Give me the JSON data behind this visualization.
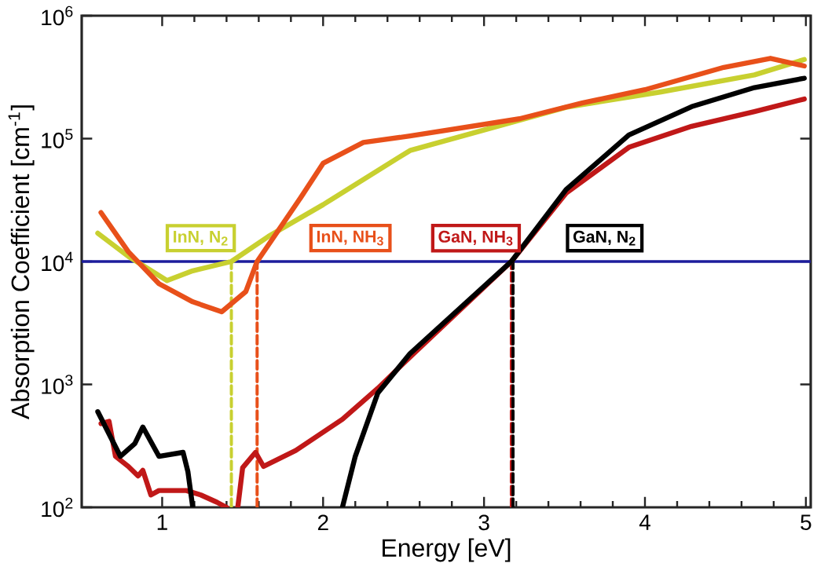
{
  "chart_data": {
    "type": "line",
    "xlabel": "Energy [eV]",
    "ylabel": "Absorption Coefficient [cm$^{-1}$]",
    "log": "y",
    "xlim": [
      0.5,
      5.03
    ],
    "ylim": [
      100,
      1000000
    ],
    "xticks": [
      1,
      2,
      3,
      4,
      5
    ],
    "yticks": [
      {
        "value": 100,
        "label": "10$^{2}$"
      },
      {
        "value": 1000,
        "label": "10$^{3}$"
      },
      {
        "value": 10000,
        "label": "10$^{4}$"
      },
      {
        "value": 100000,
        "label": "10$^{5}$"
      },
      {
        "value": 1000000,
        "label": "10$^{6}$"
      }
    ],
    "series": [
      {
        "name": "InN, N$_{2}$",
        "color": "#c8d030",
        "x": [
          0.6,
          0.79,
          1.03,
          1.19,
          1.43,
          1.66,
          2.0,
          2.54,
          3.51,
          4.1,
          4.68,
          4.99
        ],
        "values": [
          17000,
          11000,
          7000,
          8400,
          10000,
          16000,
          29000,
          80000,
          180000,
          240000,
          330000,
          440000
        ]
      },
      {
        "name": "InN, NH$_{3}$",
        "color": "#e8501a",
        "x": [
          0.62,
          0.79,
          0.98,
          1.19,
          1.37,
          1.52,
          1.59,
          1.86,
          2.0,
          2.25,
          2.54,
          3.22,
          3.61,
          4.0,
          4.49,
          4.78,
          4.99
        ],
        "values": [
          25000,
          12000,
          6600,
          4700,
          3900,
          5700,
          10000,
          33000,
          63000,
          93000,
          105000,
          145000,
          195000,
          250000,
          380000,
          450000,
          390000
        ]
      },
      {
        "name": "GaN, NH$_{3}$",
        "color": "#c01818",
        "x": [
          0.62,
          0.67,
          0.71,
          0.79,
          0.85,
          0.88,
          0.93,
          0.98,
          1.15,
          1.24,
          1.34,
          1.4,
          1.44,
          1.47,
          1.5,
          1.58,
          1.63,
          1.83,
          2.12,
          2.34,
          2.54,
          3.17,
          3.51,
          3.9,
          4.29,
          4.68,
          4.99
        ],
        "values": [
          480,
          500,
          260,
          215,
          180,
          200,
          126,
          137,
          137,
          126,
          110,
          100,
          null,
          100,
          210,
          280,
          215,
          290,
          520,
          930,
          1670,
          10000,
          36000,
          85000,
          126000,
          166000,
          210000
        ]
      },
      {
        "name": "GaN, N$_{2}$",
        "color": "#000000",
        "x": [
          0.6,
          0.74,
          0.83,
          0.88,
          0.98,
          1.13,
          1.16,
          1.19,
          1.6,
          2.12,
          2.2,
          2.34,
          2.54,
          3.17,
          3.51,
          3.9,
          4.29,
          4.68,
          4.99
        ],
        "values": [
          600,
          260,
          330,
          450,
          260,
          280,
          195,
          100,
          null,
          100,
          260,
          850,
          1780,
          10000,
          38500,
          107000,
          182000,
          260000,
          310000
        ]
      },
      {
        "type": "line",
        "line_style": "dashed",
        "color": "#c8d030",
        "x": [
          1.43,
          1.43
        ],
        "values": [
          100,
          10000
        ]
      },
      {
        "type": "line",
        "line_style": "dashed",
        "color": "#e8501a",
        "x": [
          1.59,
          1.59
        ],
        "values": [
          100,
          10000
        ]
      },
      {
        "type": "line",
        "line_style": "dashed",
        "color": "#c01818",
        "x": [
          3.17,
          3.17
        ],
        "values": [
          100,
          10000
        ]
      },
      {
        "type": "line",
        "line_style": "dashed",
        "color": "#000000",
        "x": [
          3.18,
          3.18
        ],
        "values": [
          100,
          10000
        ]
      }
    ],
    "ref_lines": [
      {
        "axis": "y",
        "value": 10000,
        "color": "#1c1c9c"
      }
    ]
  }
}
